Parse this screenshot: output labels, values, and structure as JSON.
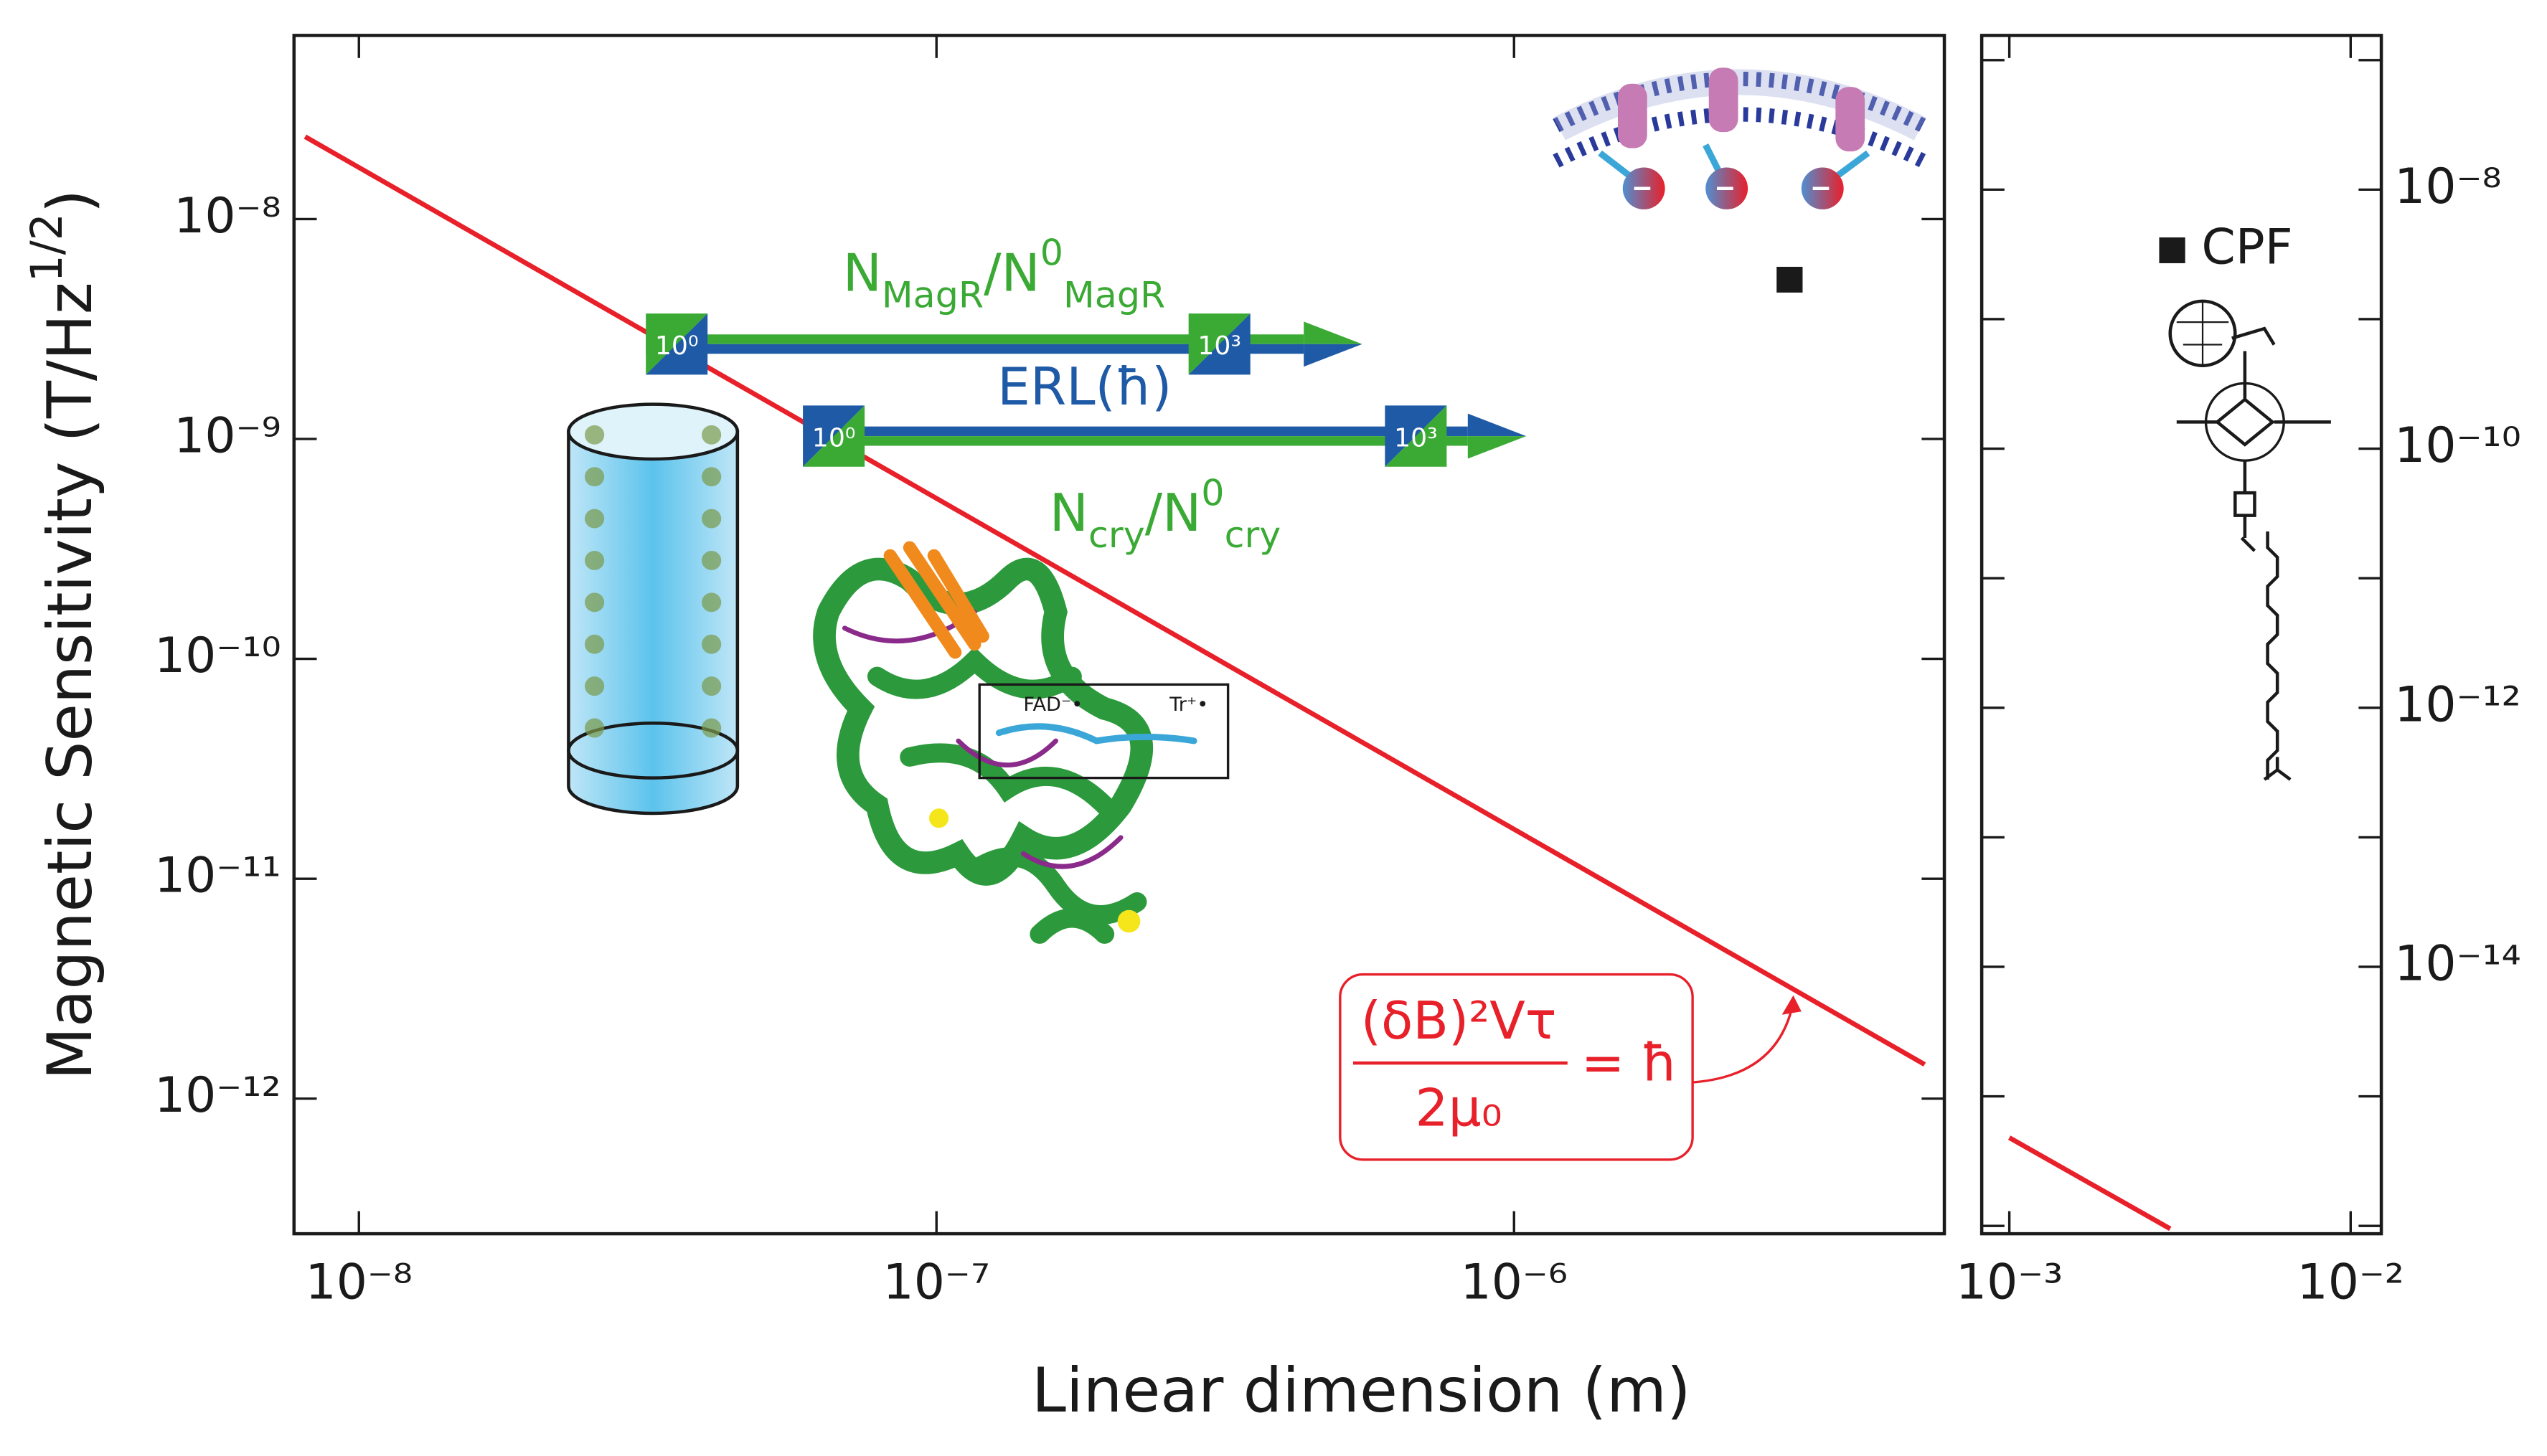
{
  "chart_data": [
    {
      "type": "line",
      "log_x": true,
      "log_y": true,
      "y_axis_side": "left",
      "ylabel": [
        {
          "text": "Magnetic Sensitivity (T/Hz"
        },
        {
          "text": "1/2",
          "shift": "super"
        },
        {
          "text": ")"
        }
      ],
      "xlabel": "Linear dimension (m)",
      "xlim": [
        7.72e-09,
        5.56e-06
      ],
      "ylim": [
        2.43e-13,
        6.84e-08
      ],
      "xticks": [
        {
          "value": 1e-08,
          "label": "10⁻⁸"
        },
        {
          "value": 1e-07,
          "label": "10⁻⁷"
        },
        {
          "value": 1e-06,
          "label": "10⁻⁶"
        }
      ],
      "yticks": [
        {
          "value": 1e-12,
          "label": "10⁻¹²"
        },
        {
          "value": 1e-11,
          "label": "10⁻¹¹"
        },
        {
          "value": 1e-10,
          "label": "10⁻¹⁰"
        },
        {
          "value": 1e-09,
          "label": "10⁻⁹"
        },
        {
          "value": 1e-08,
          "label": "10⁻⁸"
        }
      ],
      "series": [
        {
          "color": "#e8202a",
          "x": [
            8.07e-09,
            5.14e-06
          ],
          "values": [
            2.37e-08,
            1.43e-12
          ]
        }
      ],
      "points": [
        {
          "x": 3e-06,
          "value": 5.3e-09,
          "color": "#1a1a1a"
        }
      ],
      "arrows": [
        {
          "start": 3.14e-08,
          "end": 5.46e-07,
          "y": 2.7e-09,
          "colors": [
            "#3aaa35",
            "#1f5aa6"
          ],
          "boxes": [
            {
              "x": 3.55e-08,
              "label": "10⁰"
            },
            {
              "x": 3.09e-07,
              "label": "10³"
            }
          ]
        },
        {
          "start": 5.9e-08,
          "end": 1.05e-06,
          "y": 1.03e-09,
          "colors": [
            "#1f5aa6",
            "#3aaa35"
          ],
          "boxes": [
            {
              "x": 6.64e-08,
              "label": "10⁰"
            },
            {
              "x": 6.76e-07,
              "label": "10³"
            }
          ]
        }
      ],
      "annotations": [
        {
          "color": "#3aaa35",
          "segments": [
            {
              "text": "N"
            },
            {
              "text": "MagR",
              "shift": "sub"
            },
            {
              "text": "/N"
            },
            {
              "text": "0",
              "shift": "super"
            },
            {
              "text": "MagR",
              "shift": "sub"
            }
          ]
        },
        {
          "color": "#1f5aa6",
          "segments": [
            {
              "text": "ERL(ħ)"
            }
          ]
        },
        {
          "color": "#3aaa35",
          "segments": [
            {
              "text": "N"
            },
            {
              "text": "cry",
              "shift": "sub"
            },
            {
              "text": "/N"
            },
            {
              "text": "0",
              "shift": "super"
            },
            {
              "text": "cry",
              "shift": "sub"
            }
          ]
        }
      ],
      "formula": {
        "color": "#e8202a",
        "numerator": "(δB)²Vτ",
        "denominator": "2μ₀",
        "rhs": "= ħ"
      },
      "inset_labels": [
        "FAD⁻•",
        "Tr⁺•"
      ]
    },
    {
      "type": "line",
      "log_x": true,
      "log_y": true,
      "y_axis_side": "right",
      "xlim": [
        0.00083,
        0.0123
      ],
      "ylim": [
        8.7e-17,
        1.55e-07
      ],
      "xticks": [
        {
          "value": 0.001,
          "label": "10⁻³"
        },
        {
          "value": 0.01,
          "label": "10⁻²"
        }
      ],
      "yticks": [
        {
          "value": 1e-14,
          "label": "10⁻¹⁴"
        },
        {
          "value": 1e-12,
          "label": "10⁻¹²"
        },
        {
          "value": 1e-10,
          "label": "10⁻¹⁰"
        },
        {
          "value": 1e-08,
          "label": "10⁻⁸"
        }
      ],
      "yticks_minor": [
        1e-16,
        1e-15,
        1e-13,
        1e-11,
        1e-09,
        1e-07
      ],
      "series": [
        {
          "color": "#e8202a",
          "x": [
            0.001,
            0.00296
          ],
          "values": [
            4.8e-16,
            9.5e-17
          ]
        }
      ],
      "points": [
        {
          "x": 0.003,
          "value": 3.4e-09,
          "color": "#1a1a1a",
          "label": "CPF"
        }
      ]
    }
  ]
}
